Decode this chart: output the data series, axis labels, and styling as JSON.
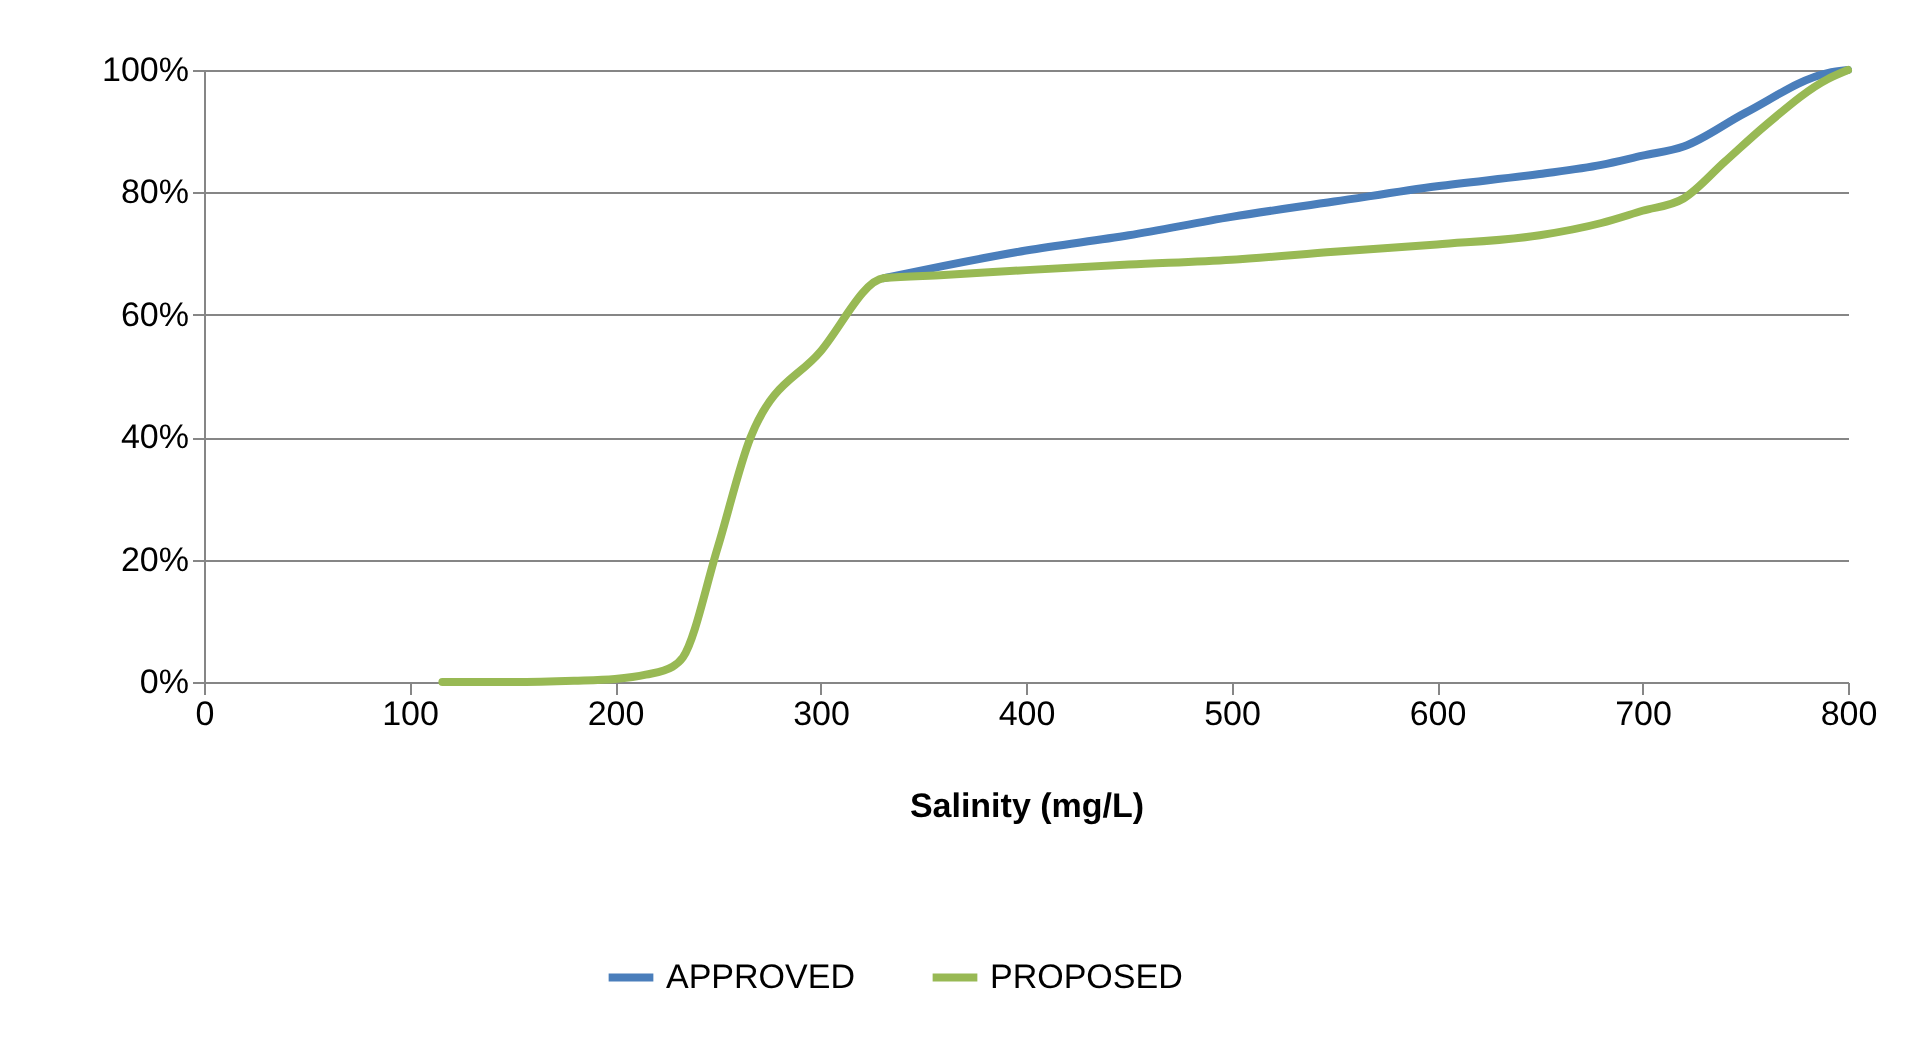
{
  "chart_data": {
    "type": "line",
    "xlabel": "Salinity (mg/L)",
    "series": [
      {
        "name": "APPROVED",
        "color": "#4a7ebb",
        "x": [
          331,
          360,
          400,
          450,
          500,
          550,
          600,
          650,
          680,
          700,
          720,
          750,
          790,
          800
        ],
        "values": [
          66,
          68,
          70.5,
          73,
          76,
          78.5,
          81,
          83,
          84.5,
          86,
          87.5,
          93,
          99.5,
          100
        ]
      },
      {
        "name": "PROPOSED",
        "color": "#98b954",
        "x": [
          116,
          150,
          180,
          200,
          215,
          228,
          233,
          250,
          266,
          300,
          331,
          360,
          400,
          450,
          500,
          550,
          600,
          650,
          680,
          700,
          720,
          740,
          760,
          790,
          800
        ],
        "values": [
          0,
          0,
          0.2,
          0.5,
          1.2,
          2.5,
          4,
          22,
          40,
          54,
          66,
          66.5,
          67.3,
          68.2,
          69,
          70.3,
          71.5,
          73,
          75,
          77,
          79,
          85,
          91,
          98.5,
          100
        ]
      }
    ],
    "xlim": [
      0,
      800
    ],
    "xticks": [
      0,
      100,
      200,
      300,
      400,
      500,
      600,
      700,
      800
    ],
    "ylim": [
      0,
      100
    ],
    "yticks": [
      {
        "value": 0,
        "label": "0%"
      },
      {
        "value": 20,
        "label": "20%"
      },
      {
        "value": 40,
        "label": "40%"
      },
      {
        "value": 60,
        "label": "60%"
      },
      {
        "value": 80,
        "label": "80%"
      },
      {
        "value": 100,
        "label": "100%"
      }
    ],
    "grid": "y",
    "legend": "bottom",
    "marker": "none",
    "line_style": "solid"
  }
}
